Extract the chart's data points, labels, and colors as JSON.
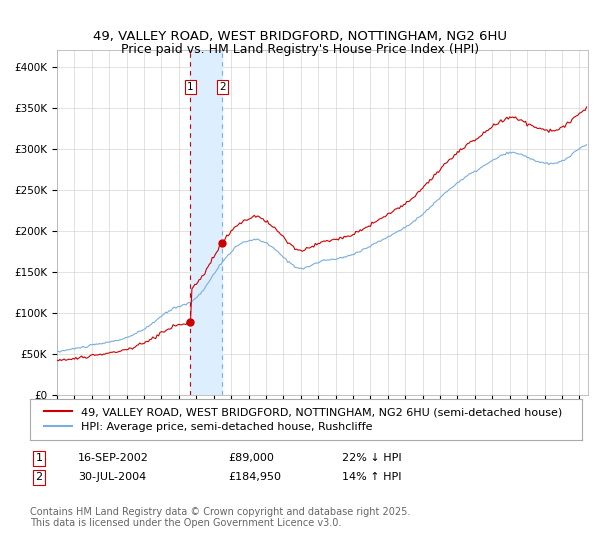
{
  "title_line1": "49, VALLEY ROAD, WEST BRIDGFORD, NOTTINGHAM, NG2 6HU",
  "title_line2": "Price paid vs. HM Land Registry's House Price Index (HPI)",
  "ylabel_ticks": [
    "£0",
    "£50K",
    "£100K",
    "£150K",
    "£200K",
    "£250K",
    "£300K",
    "£350K",
    "£400K"
  ],
  "ytick_values": [
    0,
    50000,
    100000,
    150000,
    200000,
    250000,
    300000,
    350000,
    400000
  ],
  "ylim": [
    0,
    420000
  ],
  "sale1_price": 89000,
  "sale2_price": 184950,
  "line_property_color": "#cc0000",
  "line_hpi_color": "#7aaddc",
  "shade_color": "#ddeeff",
  "vline1_color": "#cc0000",
  "vline2_color": "#7aaddc",
  "dot_color": "#cc0000",
  "legend_property": "49, VALLEY ROAD, WEST BRIDGFORD, NOTTINGHAM, NG2 6HU (semi-detached house)",
  "legend_hpi": "HPI: Average price, semi-detached house, Rushcliffe",
  "note_text": "Contains HM Land Registry data © Crown copyright and database right 2025.\nThis data is licensed under the Open Government Licence v3.0.",
  "bg_color": "#ffffff",
  "grid_color": "#cccccc",
  "title_fontsize": 9.5,
  "tick_fontsize": 7.5,
  "legend_fontsize": 8,
  "note_fontsize": 7,
  "sale1_date_str": "16-SEP-2002",
  "sale2_date_str": "30-JUL-2004",
  "sale1_hpi_rel": "22% ↓ HPI",
  "sale2_hpi_rel": "14% ↑ HPI",
  "sale1_price_str": "£89,000",
  "sale2_price_str": "£184,950"
}
